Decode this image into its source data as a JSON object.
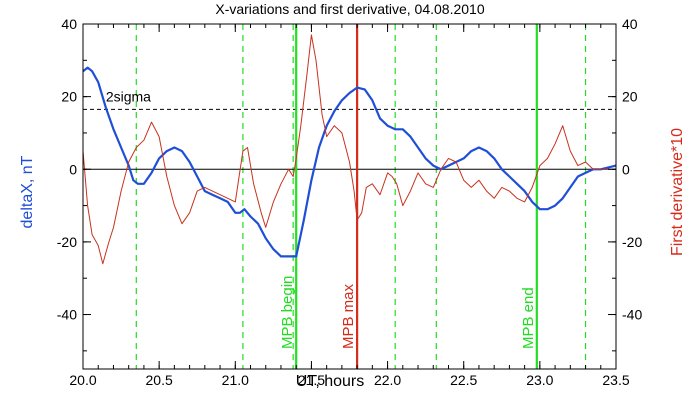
{
  "chart_data": {
    "type": "line",
    "title": "X-variations and first derivative, 04.08.2010",
    "xlabel": "UT, hours",
    "ylabel_left": "deltaX, nT",
    "ylabel_right": "First derivative*10",
    "xlim": [
      20.0,
      23.5
    ],
    "ylim": [
      -55,
      40
    ],
    "x_ticks": [
      "20.0",
      "20.5",
      "21.0",
      "21.5",
      "22.0",
      "22.5",
      "23.0",
      "23.5"
    ],
    "y_ticks": [
      "-40",
      "-20",
      "0",
      "20",
      "40"
    ],
    "colors": {
      "deltaX": "#1f4fd6",
      "derivative": "#c8321e",
      "boundary": "#22dd22",
      "max": "#d62b1b",
      "axis_left_label": "#1f4fd6",
      "axis_right_label": "#d62b1b"
    },
    "threshold": {
      "label": "2sigma",
      "value": 16.5
    },
    "zero_line": 0,
    "dashed_verticals": [
      20.35,
      21.05,
      21.38,
      22.05,
      22.32,
      23.3
    ],
    "markers": [
      {
        "label": "MPB begin",
        "x": 21.4,
        "color": "#22dd22"
      },
      {
        "label": "MPB max",
        "x": 21.8,
        "color": "#d62b1b"
      },
      {
        "label": "MPB end",
        "x": 22.98,
        "color": "#22dd22"
      }
    ],
    "series": [
      {
        "name": "deltaX",
        "axis": "left",
        "x": [
          20.0,
          20.03,
          20.06,
          20.1,
          20.15,
          20.2,
          20.25,
          20.3,
          20.33,
          20.36,
          20.4,
          20.45,
          20.5,
          20.55,
          20.6,
          20.65,
          20.7,
          20.75,
          20.8,
          20.85,
          20.9,
          20.95,
          21.0,
          21.03,
          21.06,
          21.1,
          21.15,
          21.2,
          21.25,
          21.3,
          21.35,
          21.4,
          21.45,
          21.5,
          21.55,
          21.6,
          21.65,
          21.7,
          21.75,
          21.8,
          21.85,
          21.9,
          21.95,
          22.0,
          22.05,
          22.1,
          22.15,
          22.2,
          22.25,
          22.3,
          22.35,
          22.4,
          22.45,
          22.5,
          22.55,
          22.6,
          22.65,
          22.7,
          22.75,
          22.8,
          22.85,
          22.9,
          22.95,
          23.0,
          23.05,
          23.1,
          23.15,
          23.2,
          23.25,
          23.3,
          23.35,
          23.4,
          23.45,
          23.5
        ],
        "values": [
          27,
          28,
          27,
          24,
          17,
          11,
          6,
          1,
          -3,
          -4,
          -4,
          -1,
          3,
          5,
          6,
          5,
          2,
          -2,
          -6,
          -7,
          -8,
          -9,
          -12,
          -12,
          -11,
          -13,
          -15,
          -19,
          -22,
          -24,
          -24,
          -24,
          -14,
          -3,
          6,
          12,
          16,
          19,
          21,
          22.5,
          22,
          19,
          14,
          12,
          11,
          11,
          9,
          6,
          3,
          1,
          0,
          1,
          2,
          3,
          5,
          6,
          5,
          3,
          0,
          -2,
          -4,
          -6,
          -9,
          -11,
          -11,
          -10,
          -8,
          -5,
          -2,
          -1,
          0,
          0,
          0.5,
          1
        ]
      },
      {
        "name": "First derivative*10",
        "axis": "right",
        "x": [
          20.0,
          20.03,
          20.06,
          20.1,
          20.13,
          20.17,
          20.2,
          20.25,
          20.3,
          20.35,
          20.4,
          20.45,
          20.5,
          20.55,
          20.6,
          20.65,
          20.7,
          20.75,
          20.8,
          20.85,
          20.9,
          20.95,
          21.0,
          21.05,
          21.08,
          21.12,
          21.17,
          21.2,
          21.25,
          21.3,
          21.35,
          21.38,
          21.4,
          21.43,
          21.47,
          21.5,
          21.53,
          21.57,
          21.6,
          21.65,
          21.7,
          21.75,
          21.78,
          21.8,
          21.83,
          21.86,
          21.9,
          21.95,
          22.0,
          22.03,
          22.06,
          22.1,
          22.15,
          22.2,
          22.25,
          22.3,
          22.35,
          22.4,
          22.45,
          22.5,
          22.55,
          22.6,
          22.65,
          22.7,
          22.75,
          22.8,
          22.85,
          22.9,
          22.95,
          23.0,
          23.05,
          23.1,
          23.15,
          23.2,
          23.25,
          23.3,
          23.35,
          23.4,
          23.45
        ],
        "values": [
          5,
          -10,
          -18,
          -21,
          -26,
          -20,
          -16,
          -6,
          2,
          6,
          8,
          13,
          9,
          -2,
          -10,
          -15,
          -12,
          -6,
          -5,
          -6,
          -7,
          -8,
          -9,
          5,
          6,
          -4,
          -12,
          -16,
          -9,
          -4,
          0,
          -2,
          3,
          12,
          26,
          37,
          30,
          15,
          9,
          12,
          10,
          2,
          -6,
          -14,
          -12,
          -5,
          -4,
          -7,
          -1,
          -2,
          -4,
          -10,
          -6,
          -1,
          -4,
          -5,
          0,
          3,
          2,
          -3,
          -5,
          -3,
          -6,
          -8,
          -5,
          -6,
          -8,
          -9,
          -5,
          1,
          3,
          7,
          12,
          5,
          1,
          2,
          0,
          0,
          0
        ]
      }
    ]
  }
}
